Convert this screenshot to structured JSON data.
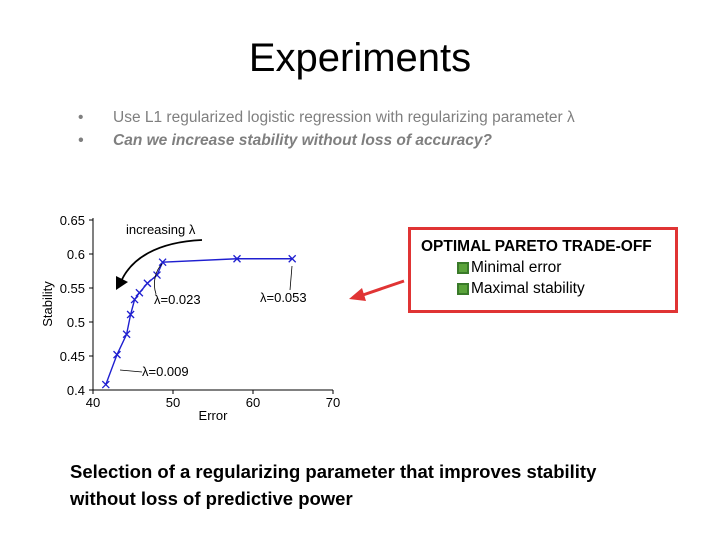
{
  "slide": {
    "title": "Experiments",
    "bullets": [
      {
        "dot": "•",
        "text": "Use L1 regularized logistic regression with regularizing parameter λ"
      },
      {
        "dot": "•",
        "text": "Can we increase stability without loss of accuracy?"
      }
    ],
    "callout": {
      "title": "OPTIMAL PARETO TRADE-OFF",
      "items": [
        "Minimal error",
        "Maximal stability"
      ],
      "border_color": "#e03434"
    },
    "caption": "Selection of a regularizing parameter that improves stability without loss of predictive power"
  },
  "chart_data": {
    "type": "line",
    "xlabel": "Error",
    "ylabel": "Stability",
    "xlim": [
      40,
      70
    ],
    "ylim": [
      0.4,
      0.65
    ],
    "xticks": [
      "40",
      "50",
      "60",
      "70"
    ],
    "yticks": [
      "0.4",
      "0.45",
      "0.5",
      "0.55",
      "0.6",
      "0.65"
    ],
    "series": [
      {
        "color": "#1f1fd0",
        "marker": "x",
        "x": [
          41.6,
          43.0,
          44.2,
          44.7,
          45.2,
          45.8,
          46.8,
          48.0,
          48.7,
          58.0,
          64.9
        ],
        "y": [
          0.408,
          0.452,
          0.482,
          0.511,
          0.533,
          0.543,
          0.557,
          0.569,
          0.588,
          0.593,
          0.593
        ]
      }
    ],
    "annotations": [
      {
        "text": "increasing λ"
      },
      {
        "text": "λ=0.023"
      },
      {
        "text": "λ=0.053"
      },
      {
        "text": "λ=0.009"
      }
    ],
    "grid": false
  }
}
